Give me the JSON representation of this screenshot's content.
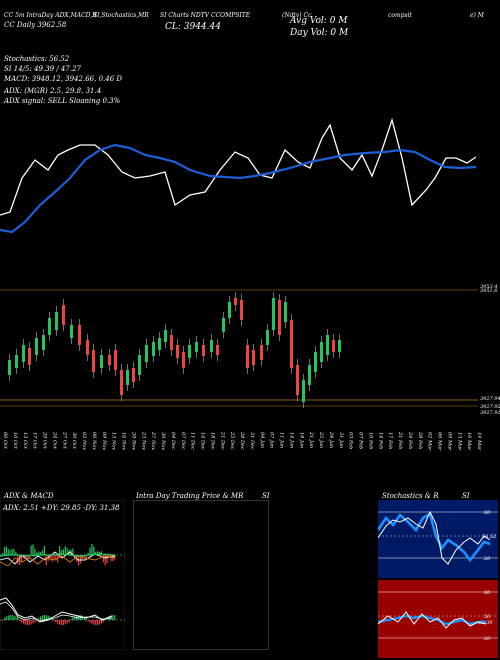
{
  "header": {
    "tabs": [
      "CC 5m IntraDay ADX,MACD,R",
      "SI,Stochastics,MR",
      "SI Charts NDTV CCOMPSITE",
      "(Ndtv) Cc",
      "compsit",
      "e) M"
    ],
    "row2_left": "CC Daily 3962.58",
    "row2_mid": "CL: 3944.44",
    "avg_vol": "Avg Vol: 0  M",
    "day_vol": "Day Vol: 0  M"
  },
  "info_lines": [
    "Stochastics: 56.52",
    "SI 14/5: 49.39 / 47.27",
    "MACD: 3948.12, 3942.66, 0.46  D",
    "ADX:                    (MGR) 2.5,  29.8,  31.4",
    "ADX  signal: SELL  Sloaning 0.3%"
  ],
  "price_labels": [
    "3953.4",
    "3951.6",
    "3927.94",
    "3927.92",
    "3927.91"
  ],
  "dates": [
    "06 Oct",
    "10 Oct",
    "13 Oct",
    "17 Oct",
    "20 Oct",
    "24 Oct",
    "27 Oct",
    "30 Oct",
    "02 Nov",
    "06 Nov",
    "09 Nov",
    "13 Nov",
    "16 Nov",
    "20 Nov",
    "23 Nov",
    "27 Nov",
    "30 Nov",
    "04 Dec",
    "07 Dec",
    "11 Dec",
    "14 Dec",
    "18 Dec",
    "21 Dec",
    "25 Dec",
    "28 Dec",
    "31 Dec",
    "04 Jan",
    "07 Jan",
    "11 Jan",
    "14 Jan",
    "18 Jan",
    "21 Jan",
    "25 Jan",
    "28 Jan",
    "31 Jan",
    "03 Feb",
    "07 Feb",
    "10 Feb",
    "14 Feb",
    "17 Feb",
    "21 Feb",
    "24 Feb",
    "28 Feb",
    "02 Mar",
    "06 Mar",
    "09 Mar",
    "13 Mar",
    "16 Mar",
    "19 Mar"
  ],
  "panels": {
    "adx_title": "ADX  & MACD",
    "adx_values": "ADX: 2.51  +DY: 29.85  -DY: 31.38",
    "mr_title": "Intra  Day Trading Price  & MR",
    "mr_suffix": "SI",
    "stoch_title": "Stochastics & R",
    "stoch_suffix": "SI",
    "stoch_ticks": [
      "80",
      "56.52",
      "20"
    ],
    "rsi_ticks": [
      "80",
      "50",
      "20"
    ],
    "rsi_value": "49.39"
  },
  "colors": {
    "background": "#000000",
    "ma_line": "#1e5fd8",
    "price_line": "#ffffff",
    "candle_up": "#22c55e",
    "candle_down": "#ef4444",
    "level_line": "#c07a1a",
    "stoch_bg": "#001a66",
    "rsi_bg": "#990000"
  }
}
